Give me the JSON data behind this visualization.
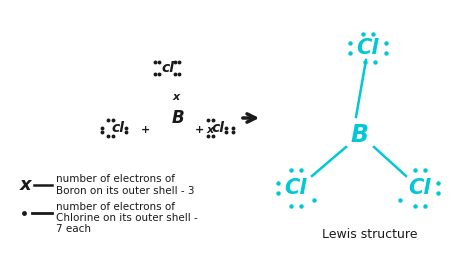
{
  "bg_color": "#ffffff",
  "cyan": "#00c8d4",
  "black": "#1a1a1a",
  "lewis_label": "Lewis structure",
  "legend_x_desc1": "number of electrons of",
  "legend_x_desc2": "Boron on its outer shell - 3",
  "legend_dot_desc1": "number of electrons of",
  "legend_dot_desc2": "Chlorine on its outer shell -",
  "legend_dot_desc3": "7 each"
}
